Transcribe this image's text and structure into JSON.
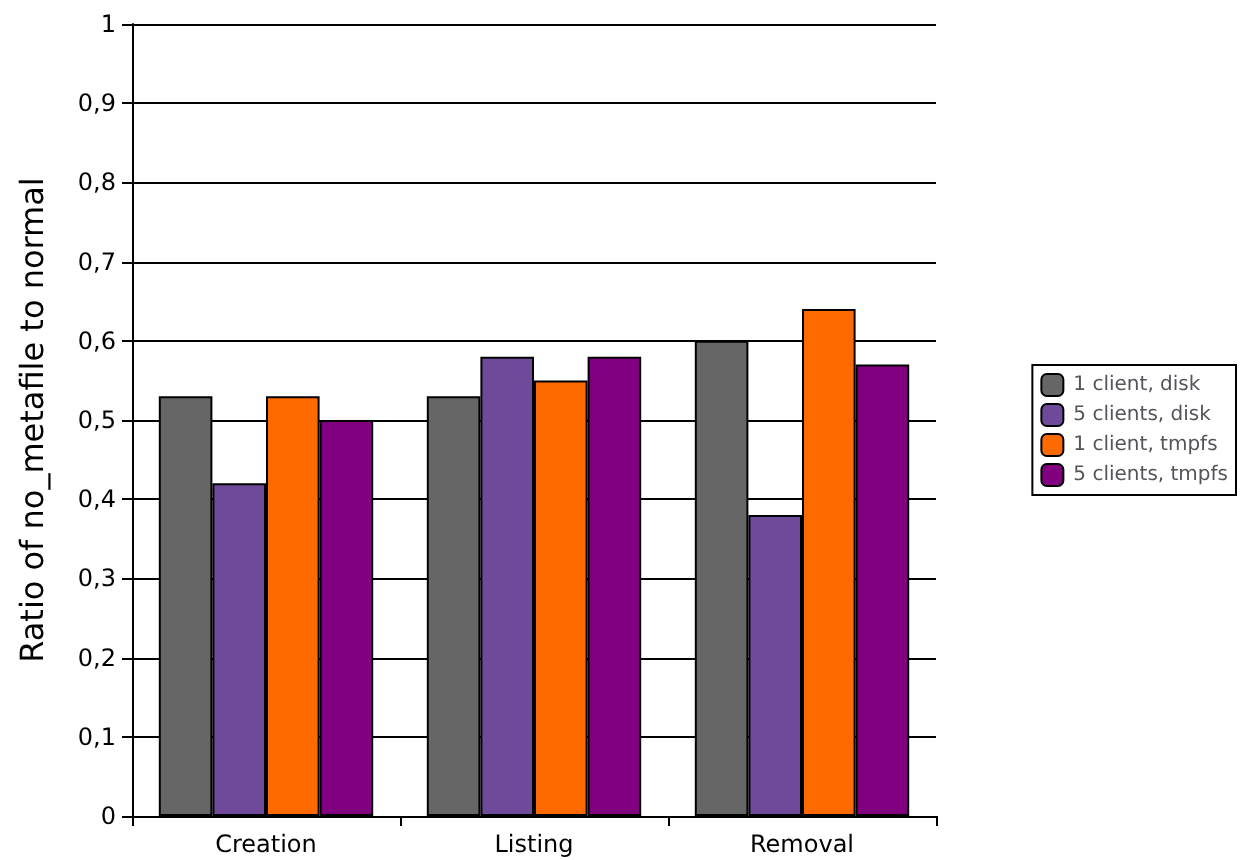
{
  "chart_data": {
    "type": "bar",
    "ylabel": "Ratio of no_metafile to normal",
    "categories": [
      "Creation",
      "Listing",
      "Removal"
    ],
    "series": [
      {
        "name": "1 client, disk",
        "color": "#666666",
        "values": [
          0.53,
          0.53,
          0.6
        ]
      },
      {
        "name": "5 clients, disk",
        "color": "#6f4a9a",
        "values": [
          0.42,
          0.58,
          0.38
        ]
      },
      {
        "name": "1 client, tmpfs",
        "color": "#ff6a00",
        "values": [
          0.53,
          0.55,
          0.64
        ]
      },
      {
        "name": "5 clients, tmpfs",
        "color": "#800080",
        "values": [
          0.5,
          0.58,
          0.57
        ]
      }
    ],
    "ylim": [
      0,
      1
    ],
    "yticks": [
      0,
      {
        "value": 0.1,
        "label": "0,1"
      },
      {
        "value": 0.2,
        "label": "0,2"
      },
      {
        "value": 0.3,
        "label": "0,3"
      },
      {
        "value": 0.4,
        "label": "0,4"
      },
      {
        "value": 0.5,
        "label": "0,5"
      },
      {
        "value": 0.6,
        "label": "0,6"
      },
      {
        "value": 0.7,
        "label": "0,7"
      },
      {
        "value": 0.8,
        "label": "0,8"
      },
      {
        "value": 0.9,
        "label": "0,9"
      },
      1
    ],
    "grid": "y",
    "legend": "right"
  }
}
